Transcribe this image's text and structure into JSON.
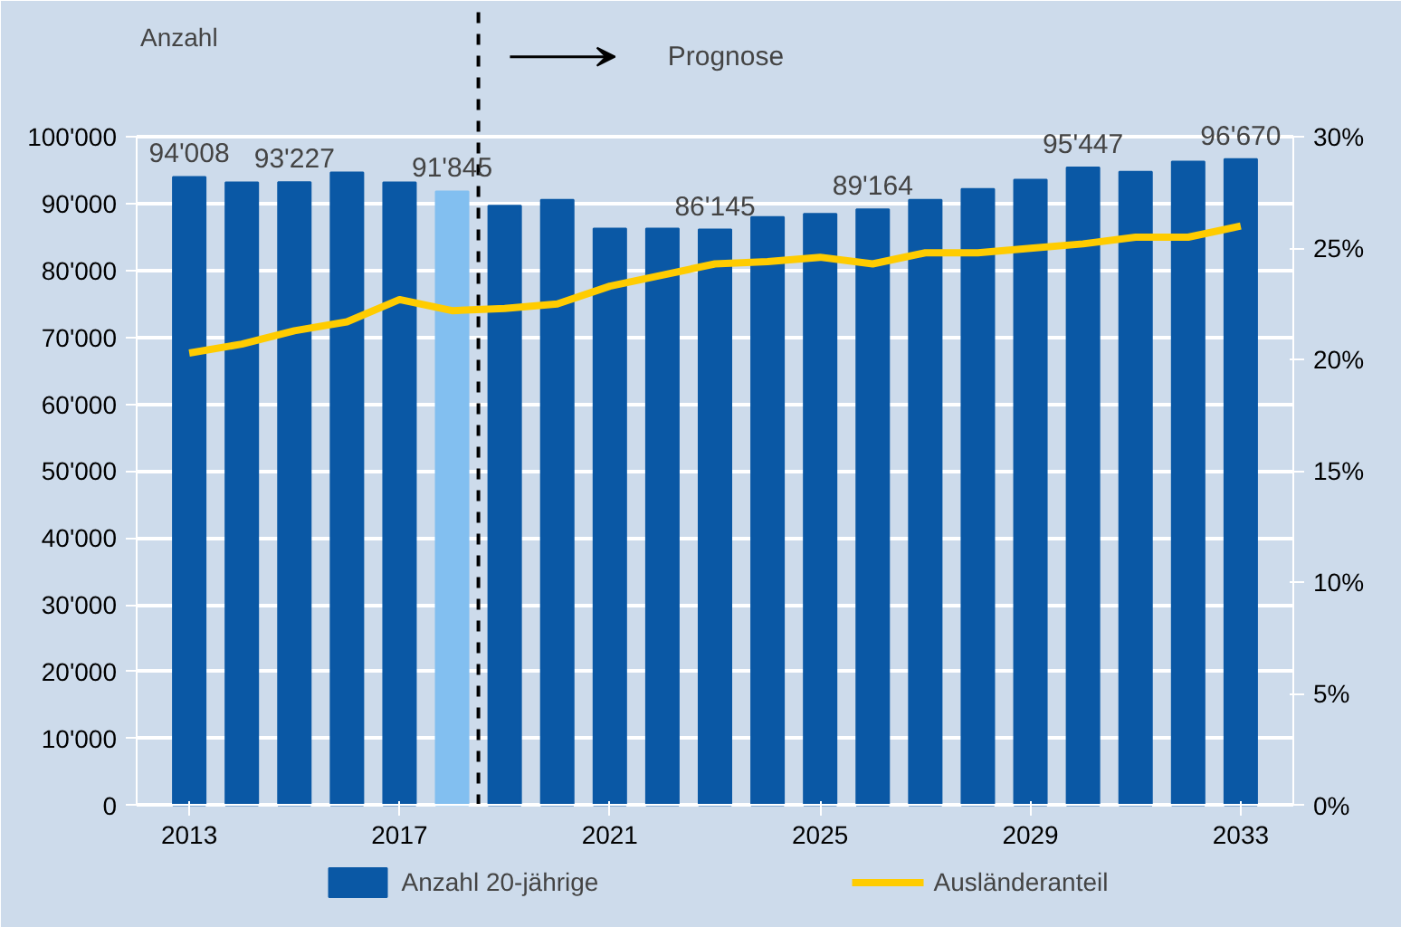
{
  "chart_data": {
    "type": "bar",
    "ylabel": "Anzahl",
    "x": [
      2013,
      2014,
      2015,
      2016,
      2017,
      2018,
      2019,
      2020,
      2021,
      2022,
      2023,
      2024,
      2025,
      2026,
      2027,
      2028,
      2029,
      2030,
      2031,
      2032,
      2033
    ],
    "xlim": [
      2012,
      2034
    ],
    "xticks": [
      2013,
      2017,
      2021,
      2025,
      2029,
      2033
    ],
    "ylim": [
      0,
      100000
    ],
    "yticks": [
      {
        "value": 0,
        "label": "0"
      },
      {
        "value": 10000,
        "label": "10'000"
      },
      {
        "value": 20000,
        "label": "20'000"
      },
      {
        "value": 30000,
        "label": "30'000"
      },
      {
        "value": 40000,
        "label": "40'000"
      },
      {
        "value": 50000,
        "label": "50'000"
      },
      {
        "value": 60000,
        "label": "60'000"
      },
      {
        "value": 70000,
        "label": "70'000"
      },
      {
        "value": 80000,
        "label": "80'000"
      },
      {
        "value": 90000,
        "label": "90'000"
      },
      {
        "value": 100000,
        "label": "100'000"
      }
    ],
    "y2lim": [
      0,
      30
    ],
    "y2ticks": [
      {
        "value": 0,
        "label": "0%"
      },
      {
        "value": 5,
        "label": "5%"
      },
      {
        "value": 10,
        "label": "10%"
      },
      {
        "value": 15,
        "label": "15%"
      },
      {
        "value": 20,
        "label": "20%"
      },
      {
        "value": 25,
        "label": "25%"
      },
      {
        "value": 30,
        "label": "30%"
      }
    ],
    "series": [
      {
        "name": "Anzahl 20-jährige",
        "color": "#0a58a5",
        "colors": [
          "#0a58a5",
          "#0a58a5",
          "#0a58a5",
          "#0a58a5",
          "#0a58a5",
          "#82bff0",
          "#0a58a5",
          "#0a58a5",
          "#0a58a5",
          "#0a58a5",
          "#0a58a5",
          "#0a58a5",
          "#0a58a5",
          "#0a58a5",
          "#0a58a5",
          "#0a58a5",
          "#0a58a5",
          "#0a58a5",
          "#0a58a5",
          "#0a58a5",
          "#0a58a5"
        ],
        "values": [
          94008,
          93200,
          93227,
          94700,
          93200,
          91845,
          89700,
          90600,
          86300,
          86300,
          86145,
          88000,
          88500,
          89164,
          90600,
          92200,
          93600,
          95447,
          94800,
          96300,
          96670
        ],
        "value_labels": [
          "94'008",
          null,
          "93'227",
          null,
          null,
          "91'845",
          null,
          null,
          null,
          null,
          "86'145",
          null,
          null,
          "89'164",
          null,
          null,
          null,
          "95'447",
          null,
          null,
          "96'670"
        ]
      },
      {
        "name": "Ausländeranteil",
        "type": "line",
        "axis": "y2",
        "color": "#ffcc00",
        "values": [
          20.3,
          20.7,
          21.3,
          21.7,
          22.7,
          22.2,
          22.3,
          22.5,
          23.3,
          23.8,
          24.3,
          24.4,
          24.6,
          24.3,
          24.8,
          24.8,
          25.0,
          25.2,
          25.5,
          25.5,
          26.0
        ]
      }
    ],
    "ref_lines": [
      {
        "axis": "x",
        "value": 2018.5,
        "color": "#000000",
        "line_style": "dashed"
      }
    ],
    "annotations": [
      "Prognose"
    ],
    "grid": "y",
    "legend": "bottom"
  }
}
